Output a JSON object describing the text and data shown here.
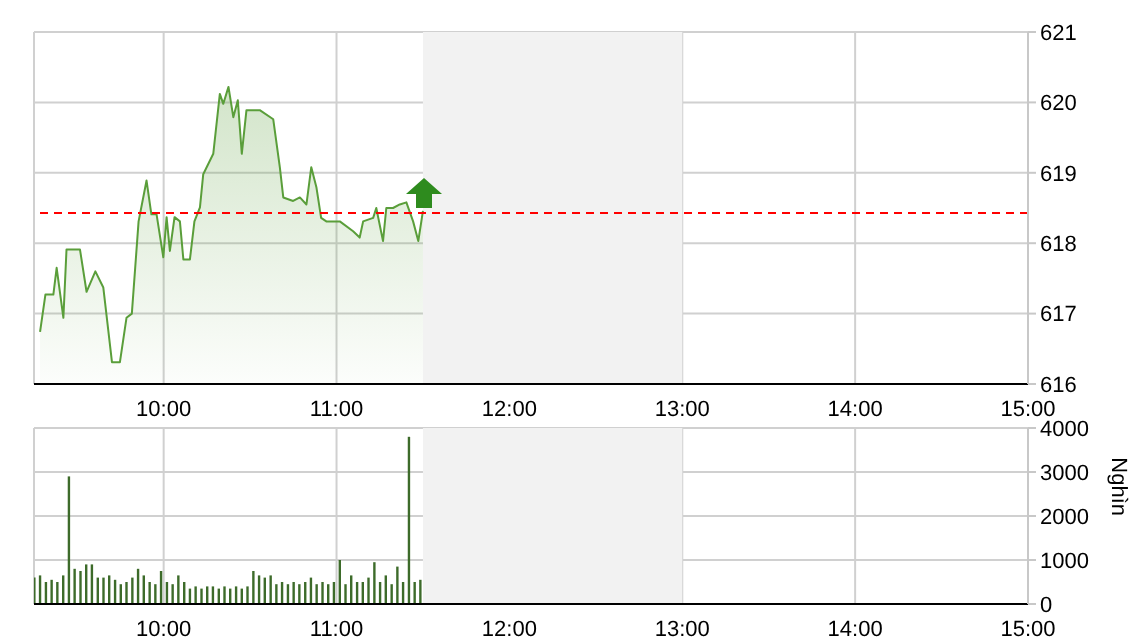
{
  "chart_data": [
    {
      "type": "area",
      "x": [
        9.285,
        9.316,
        9.362,
        9.381,
        9.42,
        9.438,
        9.516,
        9.554,
        9.605,
        9.651,
        9.701,
        9.747,
        9.785,
        9.816,
        9.855,
        9.901,
        9.929,
        9.959,
        9.998,
        10.017,
        10.036,
        10.063,
        10.094,
        10.114,
        10.152,
        10.178,
        10.21,
        10.229,
        10.287,
        10.325,
        10.345,
        10.375,
        10.403,
        10.429,
        10.452,
        10.479,
        10.556,
        10.634,
        10.672,
        10.692,
        10.749,
        10.788,
        10.826,
        10.854,
        10.884,
        10.911,
        10.941,
        11.019,
        11.096,
        11.134,
        11.154,
        11.212,
        11.23,
        11.269,
        11.288,
        11.327,
        11.366,
        11.404,
        11.443,
        11.473,
        11.5
      ],
      "series": [
        {
          "color": "#5a9e3a",
          "values": [
            616.74,
            617.27,
            617.27,
            617.65,
            616.94,
            617.91,
            617.91,
            617.31,
            617.6,
            617.37,
            616.31,
            616.31,
            616.94,
            617.0,
            618.31,
            618.89,
            618.41,
            618.41,
            617.8,
            618.37,
            617.89,
            618.37,
            618.31,
            617.77,
            617.77,
            618.31,
            618.51,
            618.98,
            619.27,
            620.12,
            619.98,
            620.22,
            619.79,
            620.03,
            619.27,
            619.89,
            619.89,
            619.76,
            619.08,
            618.65,
            618.6,
            618.65,
            618.55,
            619.08,
            618.79,
            618.36,
            618.31,
            618.31,
            618.17,
            618.08,
            618.31,
            618.36,
            618.5,
            618.03,
            618.5,
            618.5,
            618.55,
            618.58,
            618.31,
            618.03,
            618.46
          ]
        }
      ],
      "xlim": [
        9.25,
        15
      ],
      "xticks": [
        {
          "value": 10,
          "label": "10:00"
        },
        {
          "value": 11,
          "label": "11:00"
        },
        {
          "value": 12,
          "label": "12:00"
        },
        {
          "value": 13,
          "label": "13:00"
        },
        {
          "value": 14,
          "label": "14:00"
        },
        {
          "value": 15,
          "label": "15:00"
        }
      ],
      "ylim": [
        616,
        621
      ],
      "yticks": [
        616,
        617,
        618,
        619,
        620,
        621
      ],
      "grid": true,
      "ref_lines": [
        {
          "axis": "y",
          "value": 618.43,
          "color": "#ff0000",
          "line_style": "dashed"
        }
      ],
      "bands": [
        {
          "axis": "x",
          "from": 11.5,
          "to": 13,
          "color": "#f2f2f2"
        }
      ]
    },
    {
      "type": "bar",
      "x": [
        9.25,
        9.283,
        9.317,
        9.35,
        9.383,
        9.417,
        9.45,
        9.483,
        9.517,
        9.55,
        9.583,
        9.617,
        9.65,
        9.683,
        9.717,
        9.75,
        9.783,
        9.817,
        9.85,
        9.883,
        9.917,
        9.95,
        9.983,
        10.017,
        10.05,
        10.083,
        10.117,
        10.15,
        10.183,
        10.217,
        10.25,
        10.283,
        10.317,
        10.35,
        10.383,
        10.417,
        10.45,
        10.483,
        10.517,
        10.55,
        10.583,
        10.617,
        10.65,
        10.683,
        10.717,
        10.75,
        10.783,
        10.817,
        10.85,
        10.883,
        10.917,
        10.95,
        10.983,
        11.017,
        11.05,
        11.083,
        11.117,
        11.15,
        11.183,
        11.217,
        11.25,
        11.283,
        11.317,
        11.35,
        11.383,
        11.417,
        11.45,
        11.483
      ],
      "series": [
        {
          "color": "#3d6b2a",
          "values": [
            600,
            650,
            500,
            550,
            500,
            650,
            2900,
            800,
            750,
            900,
            900,
            600,
            600,
            650,
            550,
            450,
            500,
            600,
            800,
            650,
            500,
            450,
            750,
            500,
            450,
            650,
            500,
            350,
            400,
            350,
            400,
            400,
            350,
            400,
            350,
            400,
            350,
            400,
            750,
            650,
            600,
            650,
            450,
            500,
            450,
            500,
            450,
            500,
            600,
            450,
            500,
            450,
            500,
            1000,
            450,
            650,
            500,
            500,
            600,
            950,
            500,
            650,
            450,
            850,
            500,
            3800,
            500,
            550
          ]
        }
      ],
      "xlim": [
        9.25,
        15
      ],
      "xticks": [
        {
          "value": 10,
          "label": "10:00"
        },
        {
          "value": 11,
          "label": "11:00"
        },
        {
          "value": 12,
          "label": "12:00"
        },
        {
          "value": 13,
          "label": "13:00"
        },
        {
          "value": 14,
          "label": "14:00"
        },
        {
          "value": 15,
          "label": "15:00"
        }
      ],
      "ylim": [
        0,
        4000
      ],
      "yticks": [
        0,
        1000,
        2000,
        3000,
        4000
      ],
      "ylabel": "Nghìn",
      "grid": true,
      "bands": [
        {
          "axis": "x",
          "from": 11.5,
          "to": 13,
          "color": "#f2f2f2"
        }
      ]
    }
  ]
}
